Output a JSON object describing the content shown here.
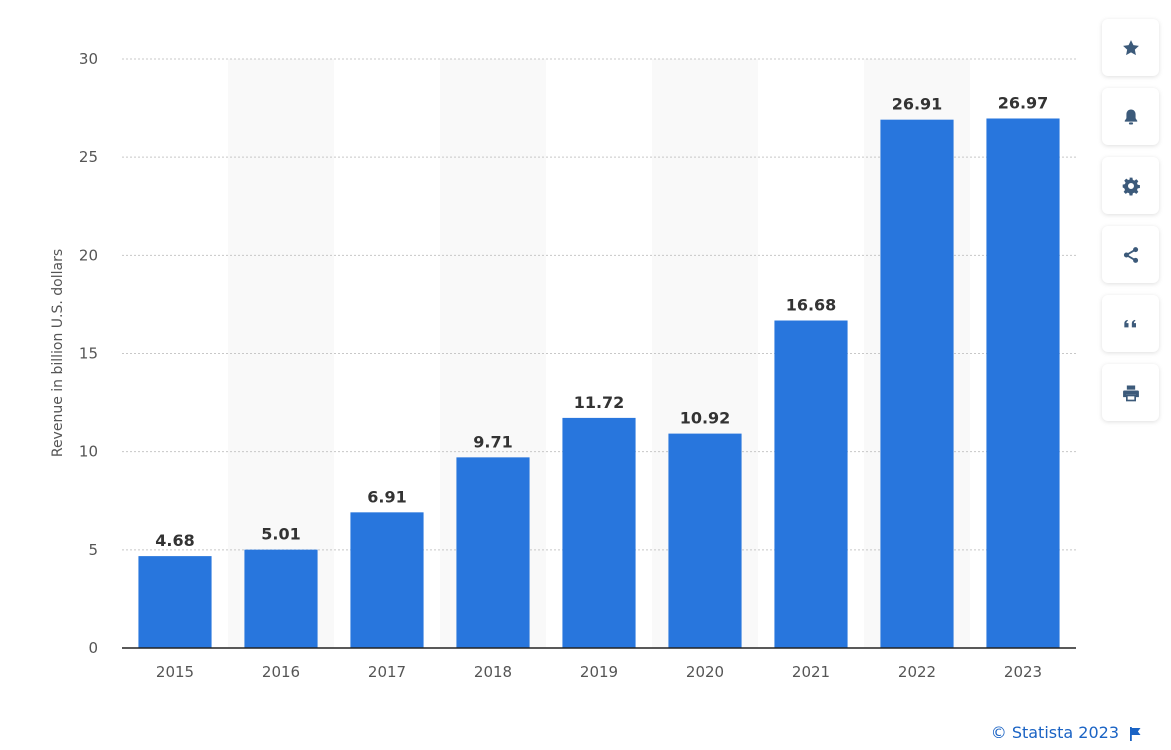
{
  "chart_data": {
    "type": "bar",
    "categories": [
      "2015",
      "2016",
      "2017",
      "2018",
      "2019",
      "2020",
      "2021",
      "2022",
      "2023"
    ],
    "values": [
      4.68,
      5.01,
      6.91,
      9.71,
      11.72,
      10.92,
      16.68,
      26.91,
      26.97
    ],
    "value_labels": [
      "4.68",
      "5.01",
      "6.91",
      "9.71",
      "11.72",
      "10.92",
      "16.68",
      "26.91",
      "26.97"
    ],
    "ylabel": "Revenue in billion U.S. dollars",
    "xlabel": "",
    "ylim": [
      0,
      30
    ],
    "yticks": [
      0,
      5,
      10,
      15,
      20,
      25,
      30
    ],
    "bar_color": "#2876dd",
    "grid": true,
    "legend": "none"
  },
  "toolbar": {
    "items": [
      {
        "name": "favorite",
        "icon": "star-icon"
      },
      {
        "name": "notification",
        "icon": "bell-icon"
      },
      {
        "name": "settings",
        "icon": "gear-icon"
      },
      {
        "name": "share",
        "icon": "share-icon"
      },
      {
        "name": "cite",
        "icon": "quote-icon"
      },
      {
        "name": "print",
        "icon": "printer-icon"
      }
    ],
    "icon_color": "#3c5a7a"
  },
  "footer": {
    "credit": "© Statista 2023",
    "credit_color": "#1a63c4",
    "flag_icon": "flag-icon"
  }
}
